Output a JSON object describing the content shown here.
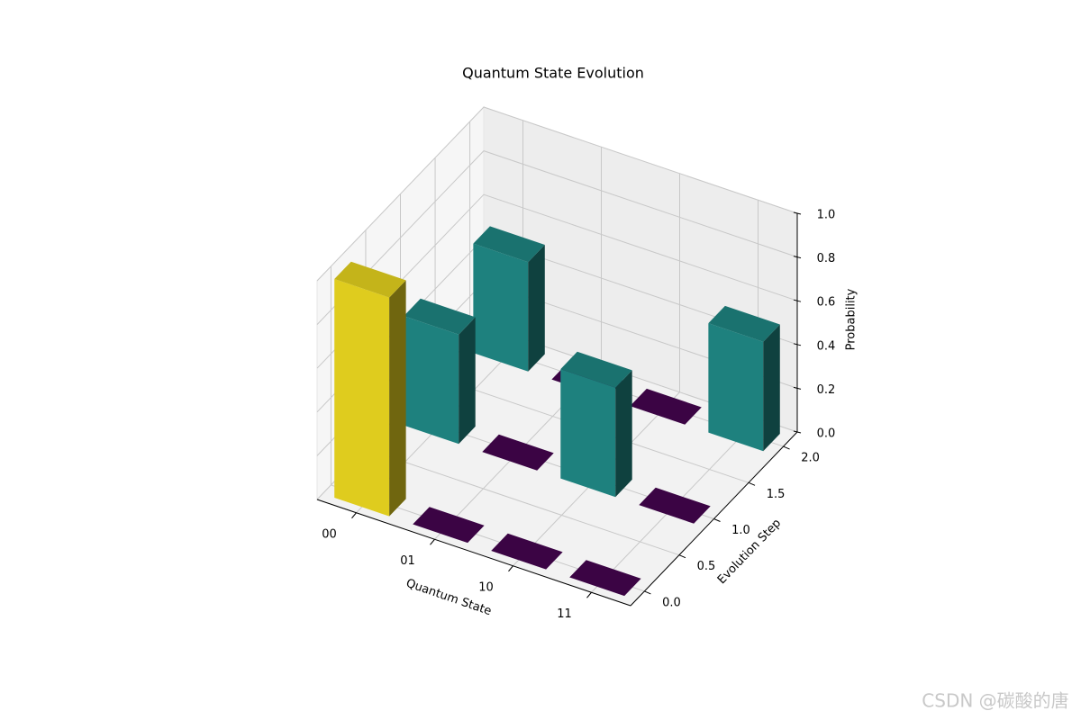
{
  "chart_data": {
    "type": "bar3d",
    "title": "Quantum State Evolution",
    "x_label": "Quantum State",
    "y_label": "Evolution Step",
    "z_label": "Probability",
    "categories": [
      "00",
      "01",
      "10",
      "11"
    ],
    "steps": [
      0,
      1,
      2
    ],
    "values": [
      [
        1.0,
        0,
        0,
        0
      ],
      [
        0.5,
        0,
        0.5,
        0
      ],
      [
        0.5,
        0,
        0,
        0.5
      ]
    ],
    "colors": [
      [
        "#dfcc1e",
        "#3b0444",
        "#3b0444",
        "#3b0444"
      ],
      [
        "#1e817e",
        "#3b0444",
        "#1e817e",
        "#3b0444"
      ],
      [
        "#1e817e",
        "#3b0444",
        "#3b0444",
        "#1e817e"
      ]
    ],
    "ylim": [
      -0.2,
      2.2
    ],
    "yticks": [
      {
        "value": 0,
        "label": "0.0"
      },
      {
        "value": 0.5,
        "label": "0.5"
      },
      {
        "value": 1,
        "label": "1.0"
      },
      {
        "value": 1.5,
        "label": "1.5"
      },
      {
        "value": 2,
        "label": "2.0"
      }
    ],
    "zlim": [
      0,
      1
    ],
    "zticks": [
      {
        "value": 0,
        "label": "0.0"
      },
      {
        "value": 0.2,
        "label": "0.2"
      },
      {
        "value": 0.4,
        "label": "0.4"
      },
      {
        "value": 0.6,
        "label": "0.6"
      },
      {
        "value": 0.8,
        "label": "0.8"
      },
      {
        "value": 1,
        "label": "1.0"
      }
    ],
    "grid": true,
    "watermark": "CSDN @碳酸的唐"
  }
}
